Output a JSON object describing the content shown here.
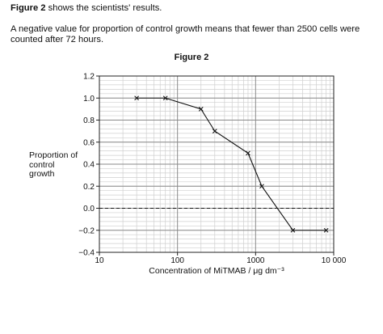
{
  "intro": {
    "figure_ref": "Figure 2",
    "rest": " shows the scientists' results."
  },
  "note": "A negative value for proportion of control growth means that fewer than 2500 cells were counted after 72 hours.",
  "chart_data": {
    "type": "line",
    "title": "Figure 2",
    "xlabel": "Concentration of MiTMAB / μg dm⁻³",
    "ylabel": "Proportion of control growth",
    "x_scale": "log",
    "xlim": [
      10,
      10000
    ],
    "ylim": [
      -0.4,
      1.2
    ],
    "x_ticks": [
      {
        "value": 10,
        "label": "10"
      },
      {
        "value": 100,
        "label": "100"
      },
      {
        "value": 1000,
        "label": "1000"
      },
      {
        "value": 10000,
        "label": "10 000"
      }
    ],
    "y_ticks": [
      {
        "value": 1.2,
        "label": "1.2"
      },
      {
        "value": 1.0,
        "label": "1.0"
      },
      {
        "value": 0.8,
        "label": "0.8"
      },
      {
        "value": 0.6,
        "label": "0.6"
      },
      {
        "value": 0.4,
        "label": "0.4"
      },
      {
        "value": 0.2,
        "label": "0.2"
      },
      {
        "value": 0.0,
        "label": "0.0"
      },
      {
        "value": -0.2,
        "label": "−0.2"
      },
      {
        "value": -0.4,
        "label": "−0.4"
      }
    ],
    "grid": true,
    "reference_line": {
      "y": 0,
      "style": "dashed"
    },
    "marker": "x",
    "series": [
      {
        "x": [
          30,
          70,
          200,
          300,
          800,
          1200,
          3000,
          8000
        ],
        "y": [
          1.0,
          1.0,
          0.9,
          0.7,
          0.5,
          0.2,
          -0.2,
          -0.2
        ]
      }
    ]
  }
}
